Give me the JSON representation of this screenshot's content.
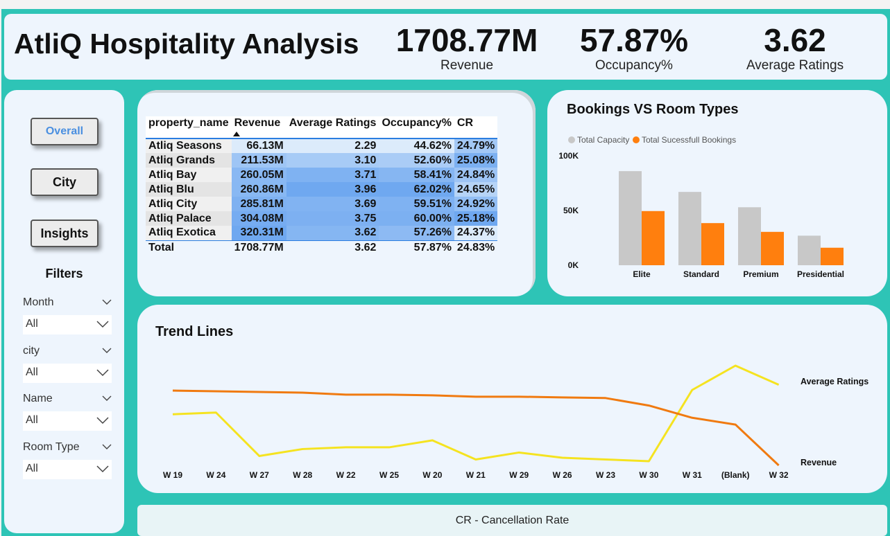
{
  "header": {
    "title": "AtliQ Hospitality Analysis",
    "kpis": [
      {
        "value": "1708.77M",
        "label": "Revenue"
      },
      {
        "value": "57.87%",
        "label": "Occupancy%"
      },
      {
        "value": "3.62",
        "label": "Average Ratings"
      }
    ]
  },
  "sidebar": {
    "nav": [
      "Overall",
      "City",
      "Insights"
    ],
    "filters_title": "Filters",
    "filters": [
      {
        "label": "Month",
        "value": "All"
      },
      {
        "label": "city",
        "value": "All"
      },
      {
        "label": "Name",
        "value": "All"
      },
      {
        "label": "Room Type",
        "value": "All"
      }
    ]
  },
  "table": {
    "columns": [
      "property_name",
      "Revenue",
      "Average Ratings",
      "Occupancy%",
      "CR"
    ],
    "sort_icon": "sort-ascending-icon",
    "rows": [
      [
        "Atliq Seasons",
        "66.13M",
        "2.29",
        "44.62%",
        "24.79%"
      ],
      [
        "Atliq Grands",
        "211.53M",
        "3.10",
        "52.60%",
        "25.08%"
      ],
      [
        "Atliq Bay",
        "260.05M",
        "3.71",
        "58.41%",
        "24.84%"
      ],
      [
        "Atliq Blu",
        "260.86M",
        "3.96",
        "62.02%",
        "24.65%"
      ],
      [
        "Atliq City",
        "285.81M",
        "3.69",
        "59.51%",
        "24.92%"
      ],
      [
        "Atliq Palace",
        "304.08M",
        "3.75",
        "60.00%",
        "25.18%"
      ],
      [
        "Atliq Exotica",
        "320.31M",
        "3.62",
        "57.26%",
        "24.37%"
      ]
    ],
    "total": [
      "Total",
      "1708.77M",
      "3.62",
      "57.87%",
      "24.83%"
    ],
    "heat_colors": {
      "low": "#dcebfb",
      "high": "#6fa8f0"
    }
  },
  "chart_data": [
    {
      "type": "bar",
      "title": "Bookings VS Room Types",
      "categories": [
        "Elite",
        "Standard",
        "Premium",
        "Presidential"
      ],
      "series": [
        {
          "name": "Total Capacity",
          "color": "#c8c8c8",
          "values": [
            86000,
            67000,
            53000,
            27000
          ]
        },
        {
          "name": "Total Sucessfull Bookings",
          "color": "#ff7f0e",
          "values": [
            49500,
            38500,
            30500,
            16000
          ]
        }
      ],
      "yticks": [
        "0K",
        "50K",
        "100K"
      ],
      "ylim": [
        0,
        100000
      ],
      "legend": "top-left"
    },
    {
      "type": "line",
      "title": "Trend Lines",
      "categories": [
        "W 19",
        "W 24",
        "W 27",
        "W 28",
        "W 22",
        "W 25",
        "W 20",
        "W 21",
        "W 29",
        "W 26",
        "W 23",
        "W 30",
        "W 31",
        "(Blank)",
        "W 32"
      ],
      "series": [
        {
          "name": "Average Ratings",
          "color": "#f5e320",
          "values": [
            3.56,
            3.57,
            3.32,
            3.36,
            3.37,
            3.37,
            3.41,
            3.3,
            3.34,
            3.31,
            3.3,
            3.29,
            3.7,
            3.84,
            3.73
          ]
        },
        {
          "name": "Revenue",
          "color": "#f07a10",
          "values": [
            118,
            117.5,
            117,
            116.5,
            115,
            115,
            114.5,
            113.5,
            113.5,
            113,
            112.5,
            107,
            98,
            93,
            63
          ]
        }
      ],
      "legend": "right"
    }
  ],
  "footer": {
    "text": "CR - Cancellation Rate"
  }
}
